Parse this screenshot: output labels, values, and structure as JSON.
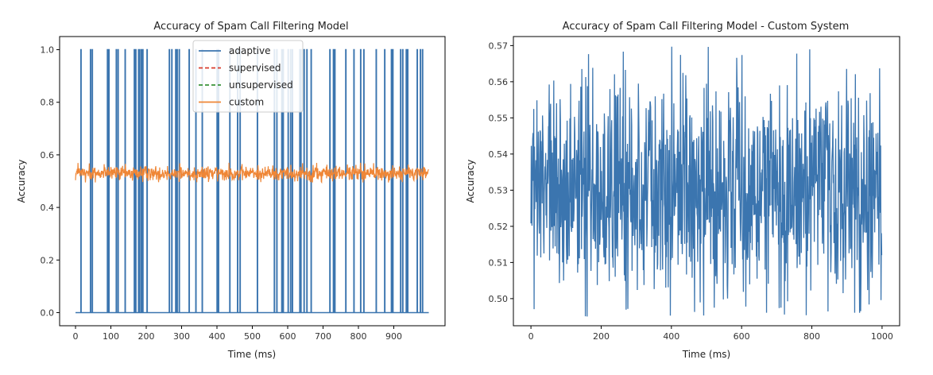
{
  "chart_data": [
    {
      "type": "line",
      "title": "Accuracy of Spam Call Filtering Model",
      "xlabel": "Time (ms)",
      "ylabel": "Accuracy",
      "xlim": [
        -45,
        1045
      ],
      "ylim": [
        -0.05,
        1.05
      ],
      "xticks": [
        0,
        100,
        200,
        300,
        400,
        500,
        600,
        700,
        800,
        900
      ],
      "yticks": [
        0.0,
        0.2,
        0.4,
        0.6,
        0.8,
        1.0
      ],
      "xtick_labels": [
        "0",
        "100",
        "200",
        "300",
        "400",
        "500",
        "600",
        "700",
        "800",
        "900"
      ],
      "ytick_labels": [
        "0.0",
        "0.2",
        "0.4",
        "0.6",
        "0.8",
        "1.0"
      ],
      "legend_position": "top-center",
      "grid": false,
      "series": [
        {
          "name": "adaptive",
          "color": "#3b75af",
          "style": "solid",
          "spike_times": [
            15,
            42,
            47,
            90,
            94,
            115,
            120,
            140,
            166,
            170,
            178,
            181,
            186,
            190,
            202,
            265,
            272,
            283,
            287,
            293,
            321,
            340,
            358,
            400,
            404,
            436,
            458,
            465,
            514,
            562,
            569,
            583,
            587,
            601,
            608,
            613,
            634,
            637,
            646,
            654,
            666,
            719,
            729,
            733,
            764,
            787,
            806,
            815,
            850,
            874,
            893,
            897,
            919,
            925,
            935,
            939,
            966,
            975,
            981
          ],
          "baseline": 0,
          "peak": 1
        },
        {
          "name": "supervised",
          "color": "#d83b2c",
          "style": "dashed",
          "values": []
        },
        {
          "name": "unsupervised",
          "color": "#3a923a",
          "style": "dashed",
          "values": []
        },
        {
          "name": "custom",
          "color": "#ef8636",
          "style": "solid",
          "n_points": 1000,
          "mean": 0.53,
          "min": 0.495,
          "max": 0.57
        }
      ]
    },
    {
      "type": "line",
      "title": "Accuracy of Spam Call Filtering Model - Custom System",
      "xlabel": "Time (ms)",
      "ylabel": "Accuracy",
      "xlim": [
        -50,
        1050
      ],
      "ylim": [
        0.4925,
        0.5725
      ],
      "xticks": [
        0,
        200,
        400,
        600,
        800,
        1000
      ],
      "yticks": [
        0.5,
        0.51,
        0.52,
        0.53,
        0.54,
        0.55,
        0.56,
        0.57
      ],
      "xtick_labels": [
        "0",
        "200",
        "400",
        "600",
        "800",
        "1000"
      ],
      "ytick_labels": [
        "0.50",
        "0.51",
        "0.52",
        "0.53",
        "0.54",
        "0.55",
        "0.56",
        "0.57"
      ],
      "grid": false,
      "series": [
        {
          "color": "#3b75af",
          "style": "solid",
          "n_points": 1000,
          "mean": 0.53,
          "min": 0.495,
          "max": 0.57
        }
      ]
    }
  ]
}
